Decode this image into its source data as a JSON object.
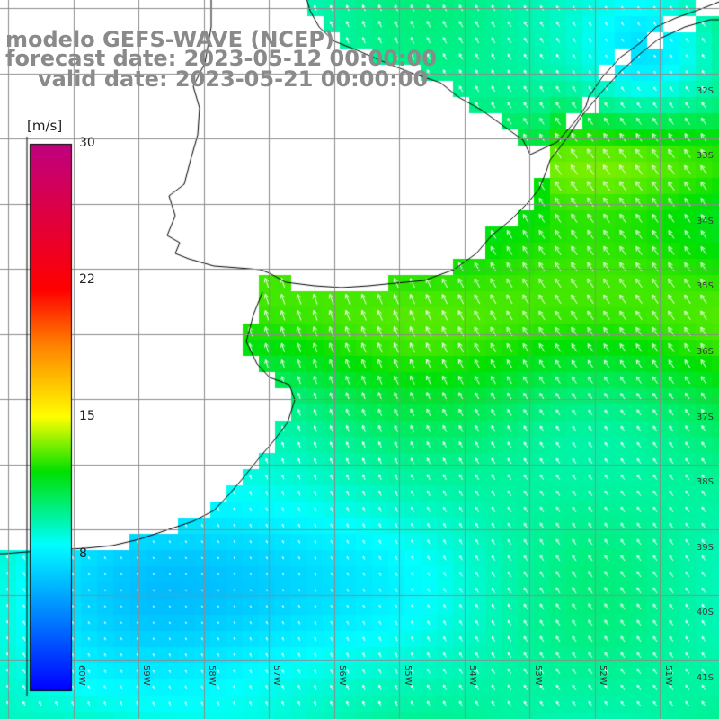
{
  "title": {
    "model": "modelo GEFS-WAVE (NCEP)",
    "forecast": "forecast date: 2023-05-12 00:00:00",
    "valid": "valid date: 2023-05-21 00:00:00"
  },
  "colorbar": {
    "unit": "[m/s]",
    "min": 0,
    "max": 30,
    "tick_values": [
      30,
      22,
      15,
      8
    ],
    "ticks": [
      "30",
      "22",
      "15",
      "8"
    ],
    "colors": [
      "#0000ff",
      "#00ffff",
      "#00e000",
      "#ffff00",
      "#ff8000",
      "#ff0000",
      "#c00080"
    ]
  },
  "longitude_labels": [
    "60W",
    "59W",
    "58W",
    "57W",
    "56W",
    "55W",
    "54W",
    "53W",
    "52W",
    "51W"
  ],
  "latitude_labels": [
    "32S",
    "33S",
    "34S",
    "35S",
    "36S",
    "37S",
    "38S",
    "39S",
    "40S",
    "41S"
  ],
  "colors": {
    "land": "#ffffff",
    "coast": "#000000",
    "grid": "#8c8c8c",
    "arrows": "#ffffff",
    "title_text": "#8a8a8a"
  }
}
